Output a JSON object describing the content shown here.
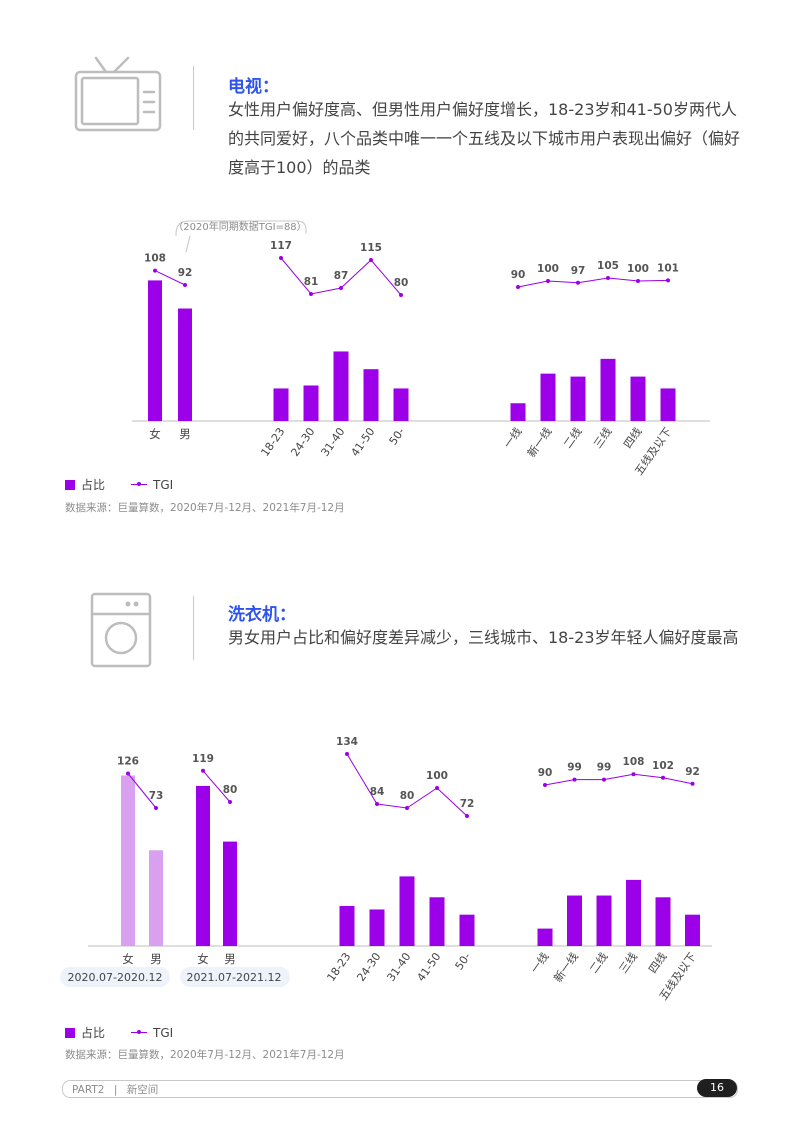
{
  "sections": [
    {
      "title": "电视：",
      "description": "女性用户偏好度高、但男性用户偏好度增长，18-23岁和41-50岁两代人的共同爱好，八个品类中唯一一个五线及以下城市用户表现出偏好（偏好度高于100）的品类",
      "icon": "tv-icon",
      "legend": {
        "share": "占比",
        "tgi": "TGI"
      },
      "source": "数据来源：巨量算数，2020年7月-12月、2021年7月-12月"
    },
    {
      "title": "洗衣机：",
      "description": "男女用户占比和偏好度差异减少，三线城市、18-23岁年轻人偏好度最高",
      "icon": "washing-machine-icon",
      "legend": {
        "share": "占比",
        "tgi": "TGI"
      },
      "source": "数据来源：巨量算数，2020年7月-12月、2021年7月-12月"
    }
  ],
  "chart_data": [
    {
      "chart": "tv",
      "type": "bar",
      "colors": {
        "bar": "#9b00e8",
        "line": "#9b00e8"
      },
      "annotation": "（2020年同期数据TGI=88）",
      "groups": [
        {
          "name": "gender",
          "categories": [
            "女",
            "男"
          ],
          "bar_values": [
            0.95,
            0.76
          ],
          "tgi": [
            108,
            92
          ]
        },
        {
          "name": "age",
          "categories": [
            "18-23",
            "24-30",
            "31-40",
            "41-50",
            "50-"
          ],
          "bar_values": [
            0.22,
            0.24,
            0.47,
            0.35,
            0.22
          ],
          "tgi": [
            117,
            81,
            87,
            115,
            80
          ]
        },
        {
          "name": "city",
          "categories": [
            "一线",
            "新一线",
            "二线",
            "三线",
            "四线",
            "五线及以下"
          ],
          "bar_values": [
            0.12,
            0.32,
            0.3,
            0.42,
            0.3,
            0.22
          ],
          "tgi": [
            90,
            100,
            97,
            105,
            100,
            101
          ]
        }
      ]
    },
    {
      "chart": "washing-machine",
      "type": "bar",
      "colors": {
        "bar": "#9b00e8",
        "bar_prev": "#d9a0f0",
        "line": "#9b00e8"
      },
      "groups": [
        {
          "name": "gender-2020",
          "categories": [
            "女",
            "男"
          ],
          "period": "2020.07-2020.12",
          "bar_values": [
            0.98,
            0.55
          ],
          "tgi": [
            126,
            73
          ]
        },
        {
          "name": "gender-2021",
          "categories": [
            "女",
            "男"
          ],
          "period": "2021.07-2021.12",
          "bar_values": [
            0.92,
            0.6
          ],
          "tgi": [
            119,
            80
          ]
        },
        {
          "name": "age",
          "categories": [
            "18-23",
            "24-30",
            "31-40",
            "41-50",
            "50-"
          ],
          "bar_values": [
            0.23,
            0.21,
            0.4,
            0.28,
            0.18
          ],
          "tgi": [
            134,
            84,
            80,
            100,
            72
          ]
        },
        {
          "name": "city",
          "categories": [
            "一线",
            "新一线",
            "二线",
            "三线",
            "四线",
            "五线及以下"
          ],
          "bar_values": [
            0.1,
            0.29,
            0.29,
            0.38,
            0.28,
            0.18
          ],
          "tgi": [
            90,
            99,
            99,
            108,
            102,
            92
          ]
        }
      ]
    }
  ],
  "footer": {
    "part": "PART2",
    "separator": "|",
    "section": "新空间",
    "page": "16"
  }
}
